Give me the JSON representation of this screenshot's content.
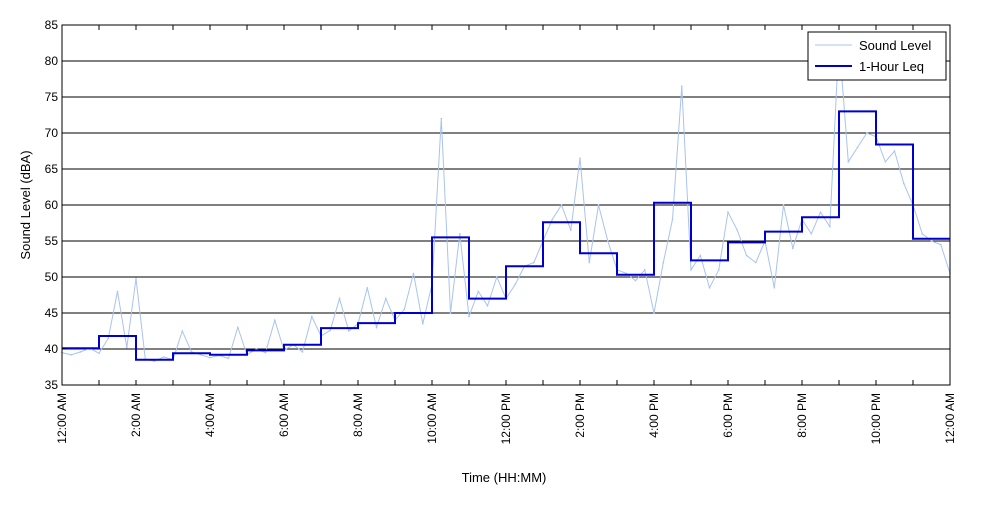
{
  "chart_data": {
    "type": "line",
    "title": "",
    "xlabel": "Time (HH:MM)",
    "ylabel": "Sound Level (dBA)",
    "ylim": [
      35,
      85
    ],
    "xlim": [
      0,
      24
    ],
    "y_ticks": [
      35,
      40,
      45,
      50,
      55,
      60,
      65,
      70,
      75,
      80,
      85
    ],
    "x_ticks": [
      {
        "hour": 0,
        "label": "12:00 AM"
      },
      {
        "hour": 2,
        "label": "2:00 AM"
      },
      {
        "hour": 4,
        "label": "4:00 AM"
      },
      {
        "hour": 6,
        "label": "6:00 AM"
      },
      {
        "hour": 8,
        "label": "8:00 AM"
      },
      {
        "hour": 10,
        "label": "10:00 AM"
      },
      {
        "hour": 12,
        "label": "12:00 PM"
      },
      {
        "hour": 14,
        "label": "2:00 PM"
      },
      {
        "hour": 16,
        "label": "4:00 PM"
      },
      {
        "hour": 18,
        "label": "6:00 PM"
      },
      {
        "hour": 20,
        "label": "8:00 PM"
      },
      {
        "hour": 22,
        "label": "10:00 PM"
      },
      {
        "hour": 24,
        "label": "12:00 AM"
      }
    ],
    "grid": "horizontal",
    "legend_position": "top-right",
    "series": [
      {
        "name": "Sound Level",
        "color": "#a9c3ee",
        "x": [
          0,
          0.25,
          0.5,
          0.75,
          1,
          1.25,
          1.5,
          1.75,
          2,
          2.25,
          2.5,
          2.75,
          3,
          3.25,
          3.5,
          3.75,
          4,
          4.25,
          4.5,
          4.75,
          5,
          5.25,
          5.5,
          5.75,
          6,
          6.25,
          6.5,
          6.75,
          7,
          7.25,
          7.5,
          7.75,
          8,
          8.25,
          8.5,
          8.75,
          9,
          9.25,
          9.5,
          9.75,
          10,
          10.25,
          10.5,
          10.75,
          11,
          11.25,
          11.5,
          11.75,
          12,
          12.25,
          12.5,
          12.75,
          13,
          13.25,
          13.5,
          13.75,
          14,
          14.25,
          14.5,
          14.75,
          15,
          15.25,
          15.5,
          15.75,
          16,
          16.25,
          16.5,
          16.75,
          17,
          17.25,
          17.5,
          17.75,
          18,
          18.25,
          18.5,
          18.75,
          19,
          19.25,
          19.5,
          19.75,
          20,
          20.25,
          20.5,
          20.75,
          21,
          21.25,
          21.5,
          21.75,
          22,
          22.25,
          22.5,
          22.75,
          23,
          23.25,
          23.5,
          23.75,
          24
        ],
        "y": [
          39.5,
          39.2,
          39.6,
          40.1,
          39.4,
          41.5,
          48,
          40.2,
          49.8,
          38.6,
          38.3,
          38.9,
          38.5,
          42.5,
          39.6,
          39.2,
          38.8,
          39.1,
          38.7,
          43,
          39.2,
          40,
          39.5,
          44,
          39.8,
          40.6,
          39.6,
          44.5,
          41.8,
          42.6,
          47,
          42.5,
          43.5,
          48.5,
          43,
          47,
          44,
          45.5,
          50.5,
          43.5,
          49,
          72,
          45,
          56,
          44.5,
          48,
          46,
          50,
          47,
          49,
          51.5,
          52,
          55,
          58,
          60,
          56.5,
          66.5,
          52,
          60,
          55,
          51,
          50.5,
          49.5,
          51,
          45,
          52,
          58,
          76.5,
          51,
          53,
          48.5,
          51,
          59,
          56.5,
          53,
          52,
          55,
          48.5,
          60,
          54,
          58,
          56,
          59,
          57,
          83,
          66,
          68,
          70,
          69.5,
          66,
          67.5,
          63,
          60,
          56,
          55,
          54.5,
          50.5
        ]
      },
      {
        "name": "1-Hour Leq",
        "color": "#0000cc",
        "step_edges": [
          0,
          1,
          2,
          3,
          4,
          5,
          6,
          7,
          8,
          9,
          10,
          11,
          12,
          13,
          14,
          15,
          16,
          17,
          18,
          19,
          20,
          21,
          22,
          23,
          24
        ],
        "values": [
          40.1,
          41.8,
          38.5,
          39.4,
          39.2,
          39.8,
          40.6,
          42.9,
          43.6,
          45,
          55.5,
          47,
          51.5,
          57.6,
          53.3,
          50.3,
          60.3,
          52.3,
          54.8,
          56.3,
          58.3,
          73,
          68.4,
          55.3,
          55.3
        ]
      }
    ]
  }
}
